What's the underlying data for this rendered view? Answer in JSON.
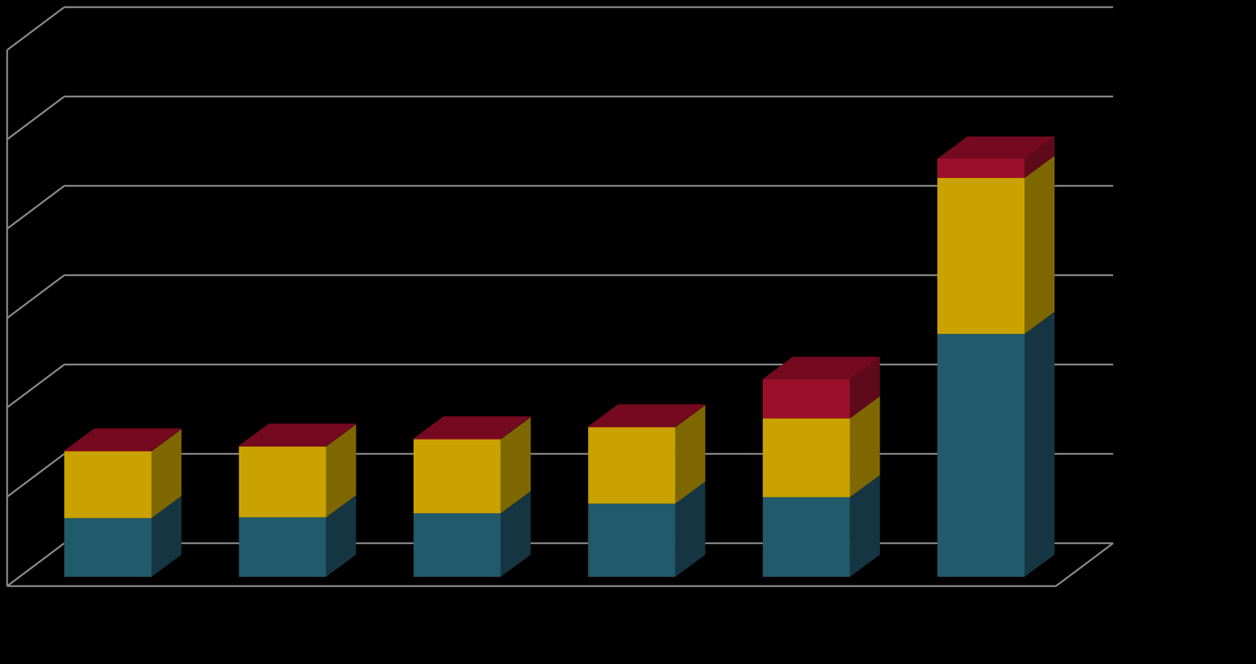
{
  "chart_data": {
    "type": "bar",
    "stacked": true,
    "three_d": true,
    "title": "",
    "xlabel": "",
    "ylabel": "",
    "ylim": [
      0,
      6
    ],
    "grid": true,
    "legend": "none",
    "categories": [
      "",
      "",
      "",
      "",
      "",
      ""
    ],
    "series": [
      {
        "values": [
          0.73,
          0.74,
          0.79,
          0.91,
          0.99,
          3.02
        ]
      },
      {
        "values": [
          0.83,
          0.88,
          0.92,
          0.95,
          0.98,
          1.94
        ]
      },
      {
        "values": [
          0.01,
          0.01,
          0.01,
          0.01,
          0.49,
          0.24
        ]
      }
    ],
    "colors": {
      "series_front": [
        "#215A6A",
        "#C9A200",
        "#9A102A"
      ],
      "series_side": [
        "#163542",
        "#7F6700",
        "#5E0A1B"
      ],
      "series_top": [
        "#2A6F82",
        "#E0B700",
        "#75091F"
      ],
      "grid": "#8A8A8A",
      "background": "#000000"
    }
  }
}
